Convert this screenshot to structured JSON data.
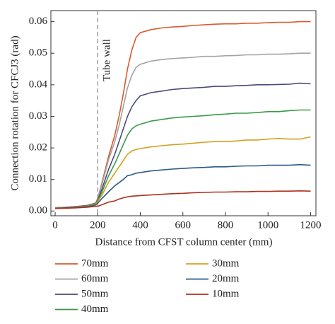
{
  "chart_data": {
    "type": "line",
    "x_label": "Distance from CFST column center (mm)",
    "y_label": "Connection rotation for CFCJ3 (rad)",
    "annotation": {
      "text": "Tube wall",
      "x": 200
    },
    "x": [
      0,
      50,
      100,
      150,
      190,
      200,
      220,
      250,
      280,
      300,
      320,
      340,
      360,
      380,
      400,
      450,
      500,
      550,
      600,
      650,
      700,
      750,
      800,
      850,
      900,
      950,
      1000,
      1050,
      1100,
      1150,
      1200
    ],
    "series": [
      {
        "name": "70mm",
        "color": "#d9592b",
        "values": [
          0.001,
          0.0012,
          0.0014,
          0.0018,
          0.0025,
          0.004,
          0.009,
          0.017,
          0.024,
          0.03,
          0.037,
          0.045,
          0.051,
          0.055,
          0.0565,
          0.0575,
          0.058,
          0.0583,
          0.0585,
          0.0588,
          0.059,
          0.0592,
          0.0593,
          0.0593,
          0.0595,
          0.0595,
          0.0597,
          0.0598,
          0.0598,
          0.06,
          0.06
        ]
      },
      {
        "name": "60mm",
        "color": "#a3a3a3",
        "values": [
          0.001,
          0.0012,
          0.0014,
          0.0017,
          0.0024,
          0.0038,
          0.0085,
          0.016,
          0.022,
          0.027,
          0.033,
          0.039,
          0.043,
          0.0455,
          0.0465,
          0.0475,
          0.048,
          0.0483,
          0.0485,
          0.0487,
          0.049,
          0.049,
          0.0492,
          0.0493,
          0.0495,
          0.0495,
          0.0497,
          0.0497,
          0.0498,
          0.05,
          0.05
        ]
      },
      {
        "name": "50mm",
        "color": "#4a4a7c",
        "values": [
          0.001,
          0.0012,
          0.0014,
          0.0017,
          0.0024,
          0.0035,
          0.007,
          0.013,
          0.018,
          0.022,
          0.026,
          0.03,
          0.033,
          0.035,
          0.0365,
          0.0375,
          0.038,
          0.0385,
          0.0388,
          0.039,
          0.0392,
          0.0395,
          0.0395,
          0.0397,
          0.0398,
          0.04,
          0.04,
          0.0401,
          0.0402,
          0.0405,
          0.0403
        ]
      },
      {
        "name": "40mm",
        "color": "#3a9a4a",
        "values": [
          0.001,
          0.0011,
          0.0013,
          0.0016,
          0.0023,
          0.0032,
          0.006,
          0.011,
          0.015,
          0.018,
          0.021,
          0.024,
          0.026,
          0.027,
          0.0275,
          0.0285,
          0.029,
          0.0295,
          0.0298,
          0.03,
          0.0302,
          0.0305,
          0.0307,
          0.031,
          0.031,
          0.0312,
          0.0315,
          0.0315,
          0.0318,
          0.032,
          0.032
        ]
      },
      {
        "name": "30mm",
        "color": "#d4a020",
        "values": [
          0.001,
          0.0011,
          0.0012,
          0.0015,
          0.0021,
          0.003,
          0.005,
          0.009,
          0.012,
          0.014,
          0.016,
          0.018,
          0.019,
          0.0195,
          0.0198,
          0.0203,
          0.0207,
          0.021,
          0.0212,
          0.0215,
          0.0218,
          0.022,
          0.022,
          0.0222,
          0.0225,
          0.0225,
          0.0228,
          0.023,
          0.0228,
          0.0228,
          0.0235
        ]
      },
      {
        "name": "20mm",
        "color": "#2c5a8a",
        "values": [
          0.0009,
          0.001,
          0.0011,
          0.0014,
          0.0019,
          0.0025,
          0.004,
          0.006,
          0.008,
          0.009,
          0.01,
          0.0112,
          0.0115,
          0.012,
          0.0122,
          0.0127,
          0.013,
          0.0133,
          0.0135,
          0.0137,
          0.0138,
          0.014,
          0.014,
          0.0142,
          0.0143,
          0.0143,
          0.0145,
          0.0145,
          0.0145,
          0.0147,
          0.0145
        ]
      },
      {
        "name": "10mm",
        "color": "#b03020",
        "values": [
          0.0008,
          0.0009,
          0.001,
          0.0012,
          0.0015,
          0.0015,
          0.002,
          0.0028,
          0.0032,
          0.0038,
          0.0042,
          0.0045,
          0.0047,
          0.0048,
          0.0049,
          0.0051,
          0.0053,
          0.0055,
          0.0056,
          0.0058,
          0.0059,
          0.006,
          0.006,
          0.0061,
          0.0061,
          0.0062,
          0.0062,
          0.0063,
          0.0063,
          0.0064,
          0.0063
        ]
      }
    ],
    "xlim": [
      -20,
      1225
    ],
    "ylim": [
      -0.0015,
      0.0635
    ],
    "xticks": [
      0,
      200,
      400,
      600,
      800,
      1000,
      1200
    ],
    "yticks": [
      {
        "value": 0,
        "label": "0.00"
      },
      0.01,
      0.02,
      0.03,
      0.04,
      0.05,
      0.06
    ]
  }
}
